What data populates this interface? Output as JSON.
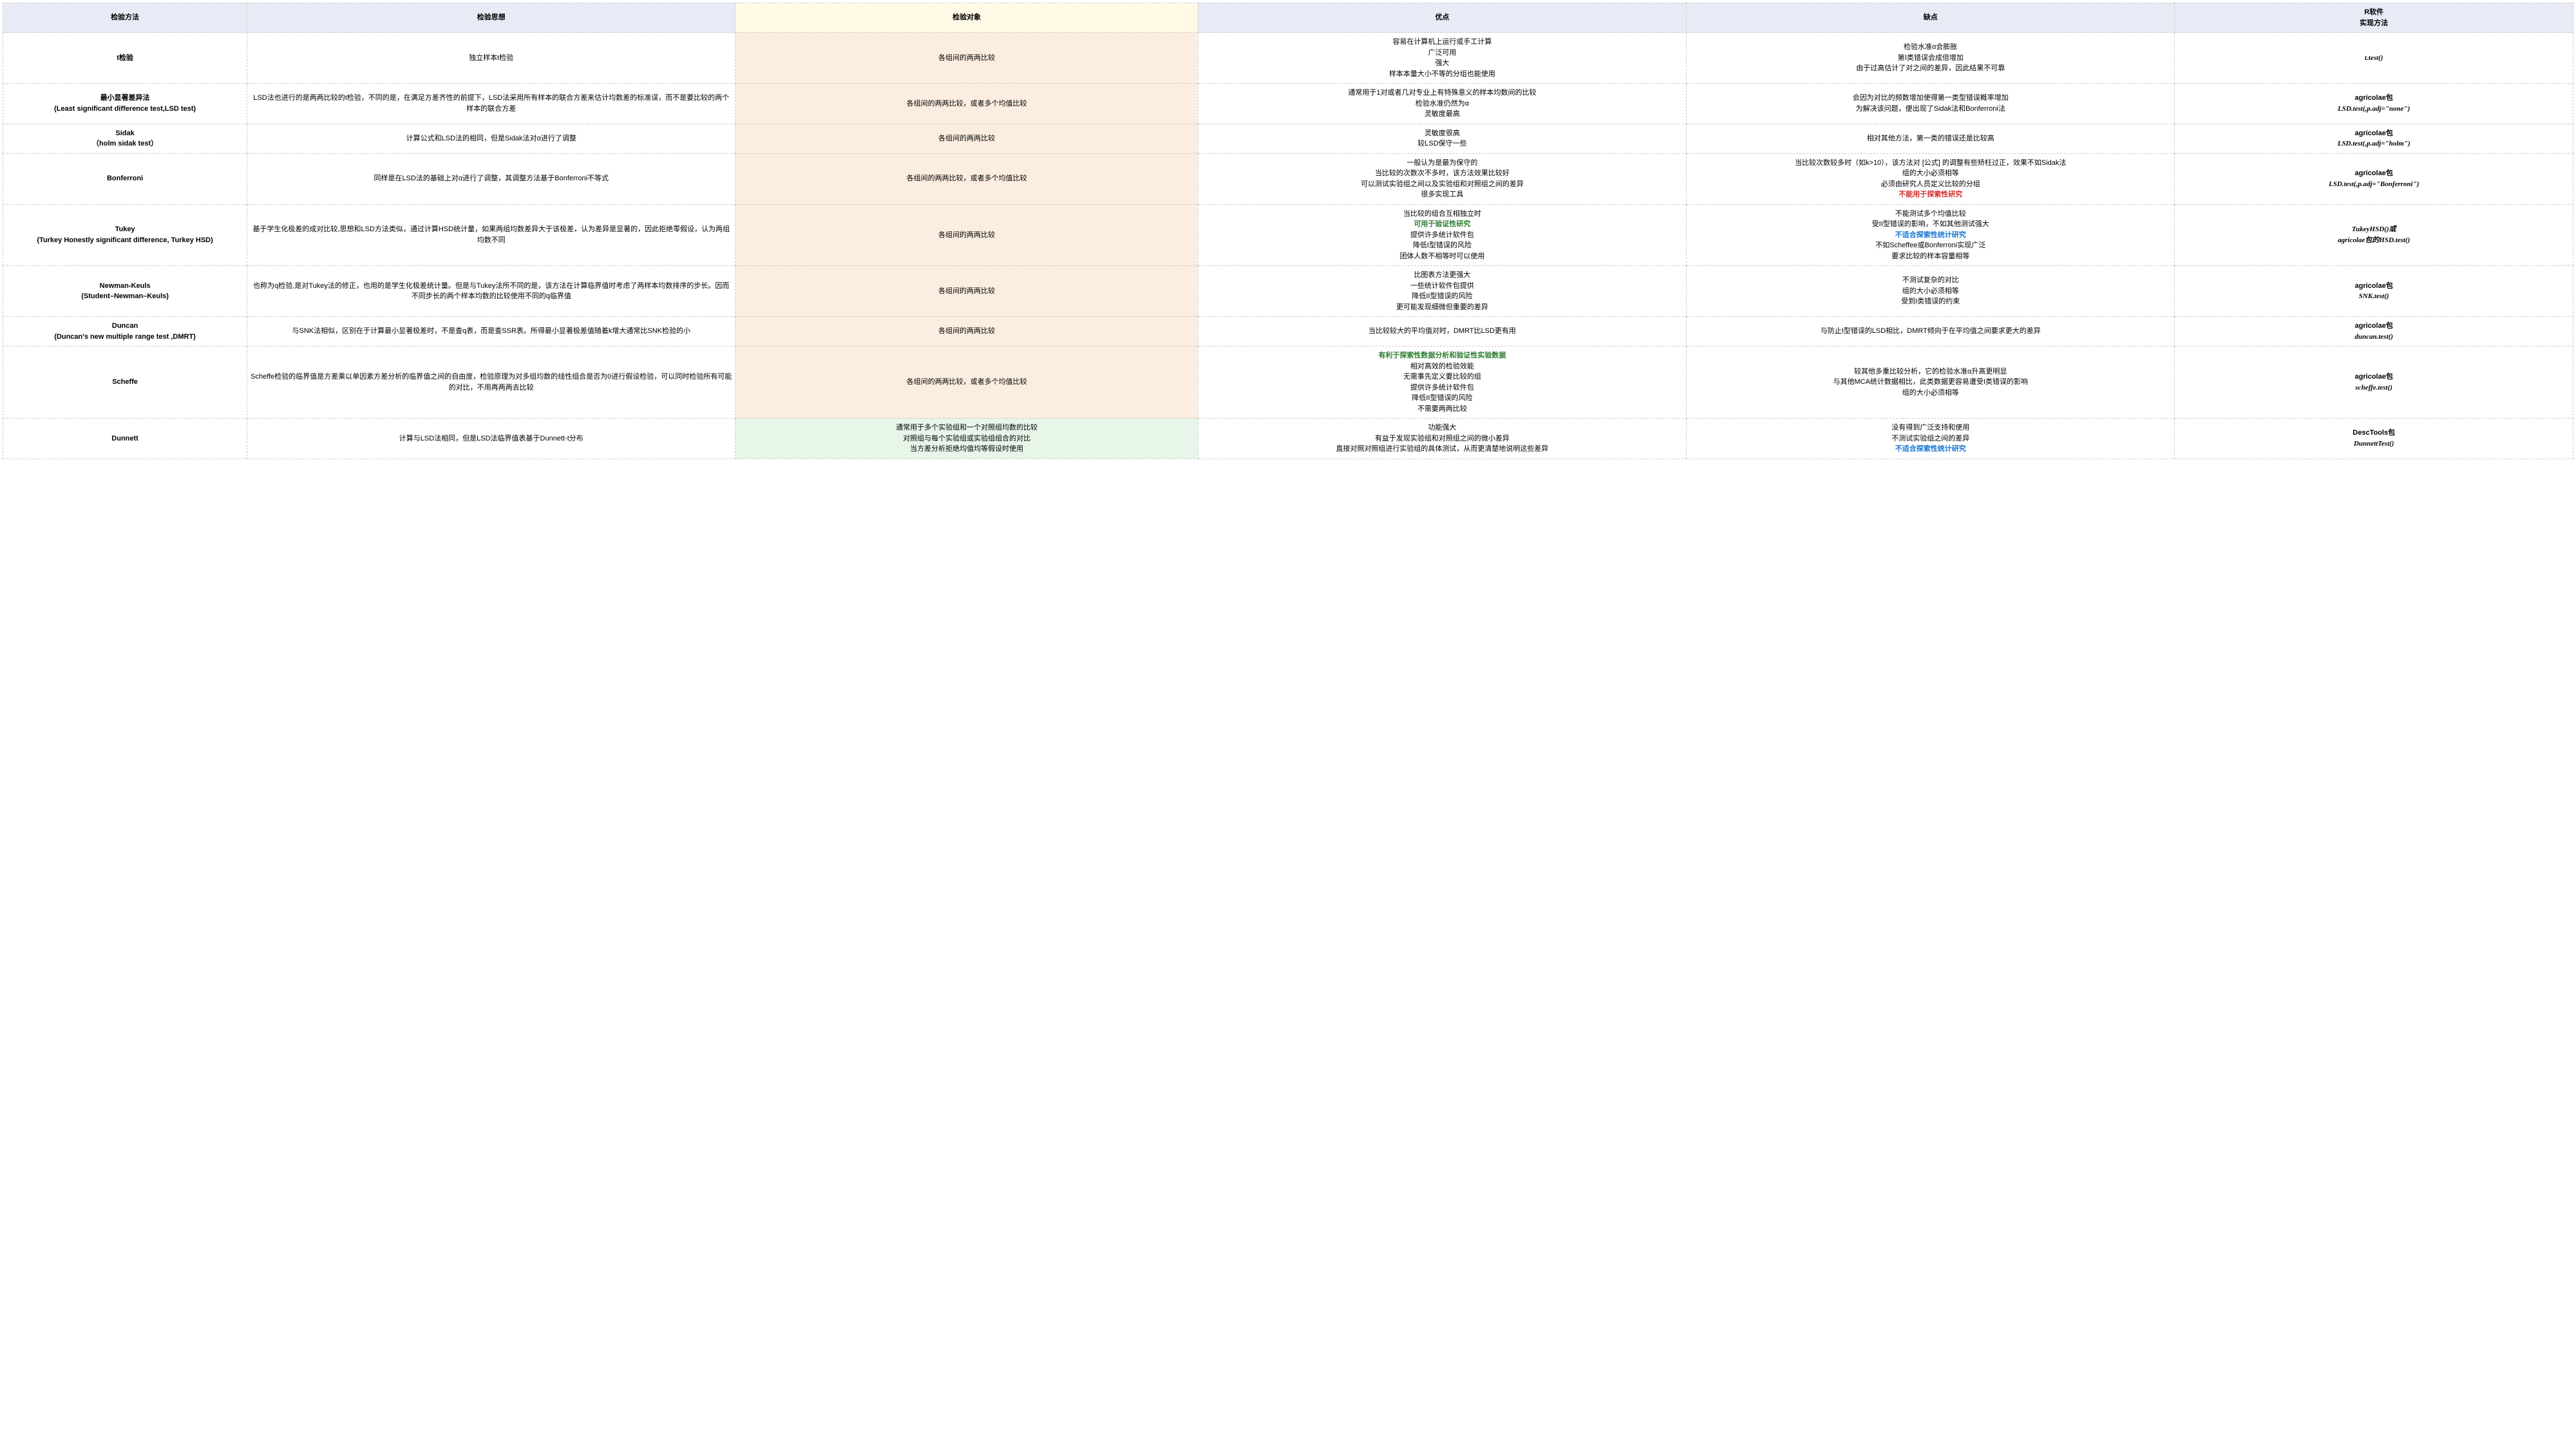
{
  "headers": [
    "检验方法",
    "检验思想",
    "检验对象",
    "优点",
    "缺点",
    "R软件\n实现方法"
  ],
  "header_classes": [
    "h0",
    "h1",
    "h2",
    "h3",
    "h4",
    "h5"
  ],
  "col_classes": [
    "c0",
    "",
    "",
    "",
    "",
    "c5"
  ],
  "col2_bg": [
    "bg-y",
    "bg-y",
    "bg-y",
    "bg-y",
    "bg-y",
    "bg-y",
    "bg-y",
    "bg-y",
    "bg-g"
  ],
  "rows": [
    [
      [
        {
          "t": "t检验"
        }
      ],
      [
        {
          "t": "独立样本t检验"
        }
      ],
      [
        {
          "t": "各组间的两两比较"
        }
      ],
      [
        {
          "t": "容易在计算机上运行或手工计算"
        },
        {
          "t": "广泛可用"
        },
        {
          "t": "强大"
        },
        {
          "t": "样本本量大小不等的分组也能使用"
        }
      ],
      [
        {
          "t": "检验水准α会膨胀"
        },
        {
          "t": "第Ⅰ类错误会成倍增加"
        },
        {
          "t": "由于过高估计了对之间的差异，因此结果不可靠"
        }
      ],
      [
        {
          "t": "t.test()",
          "c": "italic"
        }
      ]
    ],
    [
      [
        {
          "t": "最小显著差异法"
        },
        {
          "t": "(Least significant difference test,LSD test)"
        }
      ],
      [
        {
          "t": "LSD法也进行的是两两比较的t检验，不同的是，在满足方差齐性的前提下，LSD法采用所有样本的联合方差来估计均数差的标准误，而不是要比较的两个样本的联合方差"
        }
      ],
      [
        {
          "t": "各组间的两两比较，或者多个均值比较"
        }
      ],
      [
        {
          "t": "通常用于1对或者几对专业上有特殊意义的样本均数间的比较"
        },
        {
          "t": "检验水准仍然为α"
        },
        {
          "t": "灵敏度最高"
        }
      ],
      [
        {
          "t": "会因为对比的频数增加使得第一类型错误概率增加"
        },
        {
          "t": "为解决该问题，便出现了Sidak法和Bonferroni法"
        }
      ],
      [
        {
          "t": "agricolae包",
          "c": "bold"
        },
        {
          "t": "LSD.test(,p.adj=\"none\")",
          "c": "italic"
        }
      ]
    ],
    [
      [
        {
          "t": "Sidak"
        },
        {
          "t": "（holm sidak test）"
        }
      ],
      [
        {
          "t": "计算公式和LSD法的相同，但是Sidak法对α进行了调整"
        }
      ],
      [
        {
          "t": "各组间的两两比较"
        }
      ],
      [
        {
          "t": "灵敏度很高"
        },
        {
          "t": "较LSD保守一些"
        }
      ],
      [
        {
          "t": "相对其他方法，第一类的错误还是比较高"
        }
      ],
      [
        {
          "t": "agricolae包",
          "c": "bold"
        },
        {
          "t": "LSD.test(,p.adj=\"holm\")",
          "c": "italic"
        }
      ]
    ],
    [
      [
        {
          "t": "Bonferroni"
        }
      ],
      [
        {
          "t": "同样是在LSD法的基础上对α进行了调整，其调整方法基于Bonferroni不等式"
        }
      ],
      [
        {
          "t": "各组间的两两比较，或者多个均值比较"
        }
      ],
      [
        {
          "t": "一般认为是最为保守的"
        },
        {
          "t": "当比较的次数次不多时，该方法效果比较好"
        },
        {
          "t": "可以测试实验组之间以及实验组和对照组之间的差异"
        },
        {
          "t": "很多实现工具"
        }
      ],
      [
        {
          "t": "当比较次数较多时（如k>10），该方法对 [公式] 的调整有些矫枉过正，效果不如Sidak法"
        },
        {
          "t": "组的大小必须相等"
        },
        {
          "t": "必须由研究人员定义比较的分组"
        },
        {
          "t": "不能用于探索性研究",
          "c": "red"
        }
      ],
      [
        {
          "t": "agricolae包",
          "c": "bold"
        },
        {
          "t": "LSD.test(,p.adj=\"Bonferroni\")",
          "c": "italic"
        }
      ]
    ],
    [
      [
        {
          "t": "Tukey"
        },
        {
          "t": "(Turkey Honestly significant difference, Turkey HSD)"
        }
      ],
      [
        {
          "t": "基于学生化极差的成对比较,思想和LSD方法类似，通过计算HSD统计量，如果两组均数差异大于该极差，认为差异是显著的，因此拒绝零假设，认为两组均数不同"
        }
      ],
      [
        {
          "t": "各组间的两两比较"
        }
      ],
      [
        {
          "t": "当比较的组合互相独立时"
        },
        {
          "t": "可用于验证性研究",
          "c": "green"
        },
        {
          "t": "提供许多统计软件包"
        },
        {
          "t": "降低I型错误的风险"
        },
        {
          "t": "团体人数不相等时可以使用"
        }
      ],
      [
        {
          "t": "不能测试多个均值比较"
        },
        {
          "t": "受II型错误的影响，不如其他测试强大"
        },
        {
          "t": "不适合探索性统计研究",
          "c": "blue"
        },
        {
          "t": "不如Scheffee或Bonferroni实现广泛"
        },
        {
          "t": "要求比较的样本容量相等"
        }
      ],
      [
        {
          "t": "TukeyHSD()或",
          "c": "italic"
        },
        {
          "t": "agricolae包的HSD.test()",
          "c": "italic"
        }
      ]
    ],
    [
      [
        {
          "t": "Newman-Keuls"
        },
        {
          "t": "(Student–Newman–Keuls)"
        }
      ],
      [
        {
          "t": "也称为q检验,是对Tukey法的修正，也用的是学生化极差统计量。但是与Tukey法所不同的是，该方法在计算临界值时考虑了两样本均数排序的步长。因而不同步长的两个样本均数的比较使用不同的q临界值"
        }
      ],
      [
        {
          "t": "各组间的两两比较"
        }
      ],
      [
        {
          "t": "比图表方法更强大"
        },
        {
          "t": "一些统计软件包提供"
        },
        {
          "t": "降低II型错误的风险"
        },
        {
          "t": "更可能发现细微但重要的差异"
        }
      ],
      [
        {
          "t": "不测试复杂的对比"
        },
        {
          "t": "组的大小必须相等"
        },
        {
          "t": "受到I类错误的约束"
        }
      ],
      [
        {
          "t": "agricolae包",
          "c": "bold"
        },
        {
          "t": "SNK.test()",
          "c": "italic"
        }
      ]
    ],
    [
      [
        {
          "t": "Duncan"
        },
        {
          "t": "(Duncan's new multiple range test ,DMRT)"
        }
      ],
      [
        {
          "t": "与SNK法相似，区别在于计算最小显著极差时，不是查q表，而是查SSR表。所得最小显著极差值随着k增大通常比SNK检验的小"
        }
      ],
      [
        {
          "t": "各组间的两两比较"
        }
      ],
      [
        {
          "t": "当比较较大的平均值对时，DMRT比LSD更有用"
        }
      ],
      [
        {
          "t": "与防止I型错误的LSD相比，DMRT倾向于在平均值之间要求更大的差异"
        }
      ],
      [
        {
          "t": "agricolae包",
          "c": "bold"
        },
        {
          "t": "duncan.test()",
          "c": "italic"
        }
      ]
    ],
    [
      [
        {
          "t": "Scheffe"
        }
      ],
      [
        {
          "t": "Scheffe检验的临界值是方差乘以单因素方差分析的临界值之间的自由度，检验原理为对多组均数的线性组合是否为0进行假设检验，可以同时检验所有可能的对比，不用再两两去比较"
        }
      ],
      [
        {
          "t": "各组间的两两比较，或者多个均值比较"
        }
      ],
      [
        {
          "t": "有利于探索性数据分析和验证性实验数据",
          "c": "green"
        },
        {
          "t": "相对高效的检验效能"
        },
        {
          "t": "无需事先定义要比较的组"
        },
        {
          "t": "提供许多统计软件包"
        },
        {
          "t": "降低II型错误的风险"
        },
        {
          "t": "不需要两两比较"
        }
      ],
      [
        {
          "t": "较其他多重比较分析，它的检验水准α升高更明显"
        },
        {
          "t": "与其他MCA统计数据相比，此类数据更容易遭受I类错误的影响"
        },
        {
          "t": "组的大小必须相等"
        }
      ],
      [
        {
          "t": "agricolae包",
          "c": "bold"
        },
        {
          "t": "scheffe.test()",
          "c": "italic"
        }
      ]
    ],
    [
      [
        {
          "t": "Dunnett"
        }
      ],
      [
        {
          "t": "计算与LSD法相同，但是LSD法临界值表基于Dunnett-t分布"
        }
      ],
      [
        {
          "t": "通常用于多个实验组和一个对照组均数的比较"
        },
        {
          "t": "对照组与每个实验组或实验组组合的对比"
        },
        {
          "t": "当方差分析拒绝均值均等假设时使用"
        }
      ],
      [
        {
          "t": "功能强大"
        },
        {
          "t": "有益于发现实验组和对照组之间的微小差异"
        },
        {
          "t": "直接对照对照组进行实验组的具体测试，从而更清楚地说明这些差异"
        }
      ],
      [
        {
          "t": "没有得到广泛支持和使用"
        },
        {
          "t": "不测试实验组之间的差异"
        },
        {
          "t": "不适合探索性统计研究",
          "c": "blue"
        }
      ],
      [
        {
          "t": "DescTools包",
          "c": "bold"
        },
        {
          "t": "DunnettTest()",
          "c": "italic"
        }
      ]
    ]
  ]
}
